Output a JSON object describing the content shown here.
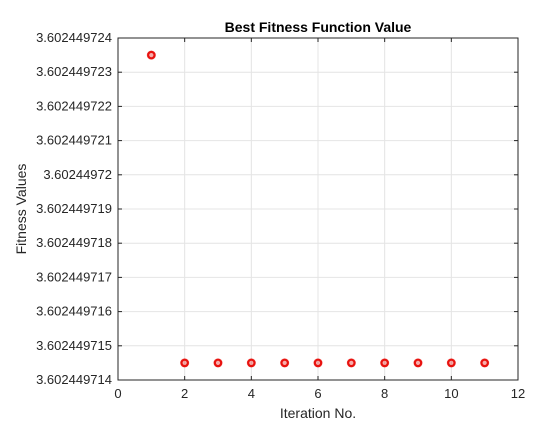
{
  "chart_data": {
    "type": "scatter",
    "title": "Best Fitness Function Value",
    "xlabel": "Iteration No.",
    "ylabel": "Fitness Values",
    "xlim": [
      0,
      12
    ],
    "ylim": [
      3.602449714,
      3.602449724
    ],
    "x_ticks": [
      0,
      2,
      4,
      6,
      8,
      10,
      12
    ],
    "x_tick_labels": [
      "0",
      "2",
      "4",
      "6",
      "8",
      "10",
      "12"
    ],
    "y_ticks": [
      3.602449714,
      3.602449715,
      3.602449716,
      3.602449717,
      3.602449718,
      3.602449719,
      3.60244972,
      3.602449721,
      3.602449722,
      3.602449723,
      3.602449724
    ],
    "y_tick_labels": [
      "3.602449714",
      "3.602449715",
      "3.602449716",
      "3.602449717",
      "3.602449718",
      "3.602449719",
      "3.60244972",
      "3.602449721",
      "3.602449722",
      "3.602449723",
      "3.602449724"
    ],
    "grid": true,
    "series": [
      {
        "marker": "circle",
        "color": "#e8130f",
        "points": [
          {
            "x": 1,
            "y": 3.6024497235
          },
          {
            "x": 2,
            "y": 3.6024497145
          },
          {
            "x": 3,
            "y": 3.6024497145
          },
          {
            "x": 4,
            "y": 3.6024497145
          },
          {
            "x": 5,
            "y": 3.6024497145
          },
          {
            "x": 6,
            "y": 3.6024497145
          },
          {
            "x": 7,
            "y": 3.6024497145
          },
          {
            "x": 8,
            "y": 3.6024497145
          },
          {
            "x": 9,
            "y": 3.6024497145
          },
          {
            "x": 10,
            "y": 3.6024497145
          },
          {
            "x": 11,
            "y": 3.6024497145
          }
        ]
      }
    ]
  }
}
